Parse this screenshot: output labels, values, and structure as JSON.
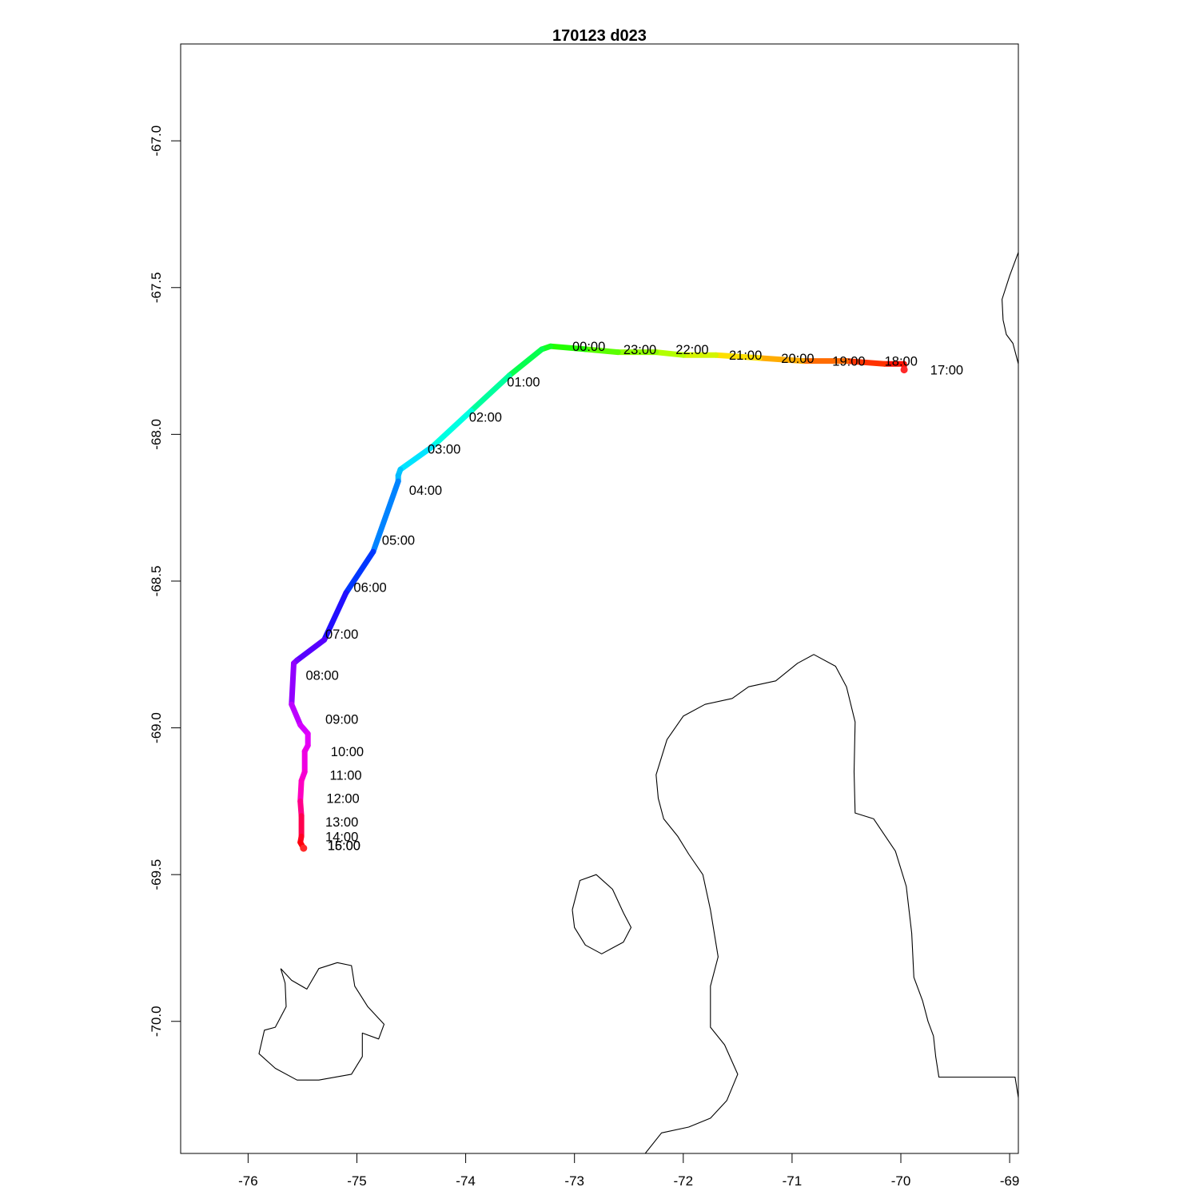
{
  "title": "170123   d023",
  "chart_data": {
    "type": "line",
    "title": "170123   d023",
    "xlabel": "",
    "ylabel": "",
    "xlim": [
      -76.62,
      -68.92
    ],
    "ylim": [
      -70.45,
      -66.67
    ],
    "x_ticks": [
      "-76",
      "-75",
      "-74",
      "-73",
      "-72",
      "-71",
      "-70",
      "-69"
    ],
    "y_ticks": [
      "-67.0",
      "-67.5",
      "-68.0",
      "-68.5",
      "-69.0",
      "-69.5",
      "-70.0"
    ],
    "x_tick_values": [
      -76,
      -75,
      -74,
      -73,
      -72,
      -71,
      -70,
      -69
    ],
    "y_tick_values": [
      -67.0,
      -67.5,
      -68.0,
      -68.5,
      -69.0,
      -69.5,
      -70.0
    ],
    "grid": false,
    "track": {
      "colors": [
        "#ff0000",
        "#ff4000",
        "#ff9a00",
        "#ffe000",
        "#c0ff00",
        "#80ff00",
        "#20ff00",
        "#00ff60",
        "#00ffc0",
        "#00ffff",
        "#00b0ff",
        "#0060ff",
        "#0020ff",
        "#4000ff",
        "#9000ff",
        "#e000ff",
        "#ff00c0",
        "#ff0000"
      ],
      "points": [
        [
          -69.97,
          -67.78
        ],
        [
          -69.97,
          -67.76
        ],
        [
          -70.15,
          -67.76
        ],
        [
          -70.5,
          -67.75
        ],
        [
          -70.9,
          -67.75
        ],
        [
          -71.3,
          -67.74
        ],
        [
          -71.7,
          -67.73
        ],
        [
          -72.0,
          -67.73
        ],
        [
          -72.25,
          -67.72
        ],
        [
          -72.6,
          -67.72
        ],
        [
          -72.9,
          -67.71
        ],
        [
          -73.22,
          -67.7
        ],
        [
          -73.3,
          -67.71
        ],
        [
          -73.6,
          -67.8
        ],
        [
          -73.95,
          -67.92
        ],
        [
          -74.3,
          -68.04
        ],
        [
          -74.6,
          -68.12
        ],
        [
          -74.62,
          -68.14
        ],
        [
          -74.62,
          -68.16
        ],
        [
          -74.85,
          -68.4
        ],
        [
          -75.1,
          -68.54
        ],
        [
          -75.3,
          -68.7
        ],
        [
          -75.55,
          -68.77
        ],
        [
          -75.58,
          -68.78
        ],
        [
          -75.6,
          -68.92
        ],
        [
          -75.52,
          -68.99
        ],
        [
          -75.45,
          -69.02
        ],
        [
          -75.45,
          -69.06
        ],
        [
          -75.48,
          -69.08
        ],
        [
          -75.48,
          -69.15
        ],
        [
          -75.51,
          -69.18
        ],
        [
          -75.52,
          -69.25
        ],
        [
          -75.51,
          -69.3
        ],
        [
          -75.51,
          -69.37
        ],
        [
          -75.52,
          -69.39
        ],
        [
          -75.49,
          -69.41
        ]
      ]
    },
    "time_labels": [
      {
        "text": "00:00",
        "x": -73.02,
        "y": -67.7
      },
      {
        "text": "23:00",
        "x": -72.55,
        "y": -67.71
      },
      {
        "text": "22:00",
        "x": -72.07,
        "y": -67.71
      },
      {
        "text": "21:00",
        "x": -71.58,
        "y": -67.73
      },
      {
        "text": "20:00",
        "x": -71.1,
        "y": -67.74
      },
      {
        "text": "19:00",
        "x": -70.63,
        "y": -67.75
      },
      {
        "text": "18:00",
        "x": -70.15,
        "y": -67.75
      },
      {
        "text": "17:00",
        "x": -69.73,
        "y": -67.78
      },
      {
        "text": "01:00",
        "x": -73.62,
        "y": -67.82
      },
      {
        "text": "02:00",
        "x": -73.97,
        "y": -67.94
      },
      {
        "text": "03:00",
        "x": -74.35,
        "y": -68.05
      },
      {
        "text": "04:00",
        "x": -74.52,
        "y": -68.19
      },
      {
        "text": "05:00",
        "x": -74.77,
        "y": -68.36
      },
      {
        "text": "06:00",
        "x": -75.03,
        "y": -68.52
      },
      {
        "text": "07:00",
        "x": -75.29,
        "y": -68.68
      },
      {
        "text": "08:00",
        "x": -75.47,
        "y": -68.82
      },
      {
        "text": "09:00",
        "x": -75.29,
        "y": -68.97
      },
      {
        "text": "10:00",
        "x": -75.24,
        "y": -69.08
      },
      {
        "text": "11:00",
        "x": -75.25,
        "y": -69.16
      },
      {
        "text": "12:00",
        "x": -75.28,
        "y": -69.24
      },
      {
        "text": "13:00",
        "x": -75.29,
        "y": -69.32
      },
      {
        "text": "14:00",
        "x": -75.29,
        "y": -69.37
      },
      {
        "text": "15:00",
        "x": -75.27,
        "y": -69.4
      },
      {
        "text": "16:00",
        "x": -75.27,
        "y": -69.4
      }
    ],
    "coastlines": [
      [
        [
          -68.92,
          -67.38
        ],
        [
          -69.0,
          -67.46
        ],
        [
          -69.07,
          -67.54
        ],
        [
          -69.06,
          -67.61
        ],
        [
          -69.03,
          -67.66
        ],
        [
          -68.97,
          -67.69
        ],
        [
          -68.92,
          -67.76
        ]
      ],
      [
        [
          -72.35,
          -70.45
        ],
        [
          -72.2,
          -70.38
        ],
        [
          -71.95,
          -70.36
        ],
        [
          -71.75,
          -70.33
        ],
        [
          -71.6,
          -70.27
        ],
        [
          -71.5,
          -70.18
        ],
        [
          -71.62,
          -70.08
        ],
        [
          -71.75,
          -70.02
        ],
        [
          -71.75,
          -69.88
        ],
        [
          -71.68,
          -69.78
        ],
        [
          -71.75,
          -69.62
        ],
        [
          -71.82,
          -69.5
        ],
        [
          -71.95,
          -69.43
        ],
        [
          -72.05,
          -69.37
        ],
        [
          -72.18,
          -69.31
        ],
        [
          -72.23,
          -69.24
        ],
        [
          -72.25,
          -69.16
        ],
        [
          -72.15,
          -69.04
        ],
        [
          -72.0,
          -68.96
        ],
        [
          -71.8,
          -68.92
        ],
        [
          -71.55,
          -68.9
        ],
        [
          -71.4,
          -68.86
        ],
        [
          -71.15,
          -68.84
        ],
        [
          -70.95,
          -68.78
        ],
        [
          -70.8,
          -68.75
        ],
        [
          -70.6,
          -68.79
        ],
        [
          -70.5,
          -68.86
        ],
        [
          -70.42,
          -68.98
        ],
        [
          -70.43,
          -69.15
        ],
        [
          -70.42,
          -69.29
        ],
        [
          -70.25,
          -69.31
        ],
        [
          -70.05,
          -69.42
        ],
        [
          -69.95,
          -69.54
        ],
        [
          -69.9,
          -69.7
        ],
        [
          -69.88,
          -69.85
        ],
        [
          -69.8,
          -69.93
        ],
        [
          -69.75,
          -70.0
        ],
        [
          -69.7,
          -70.05
        ],
        [
          -69.68,
          -70.12
        ],
        [
          -69.65,
          -70.19
        ],
        [
          -68.95,
          -70.19
        ],
        [
          -68.92,
          -70.26
        ]
      ],
      [
        [
          -73.02,
          -69.62
        ],
        [
          -72.95,
          -69.52
        ],
        [
          -72.8,
          -69.5
        ],
        [
          -72.65,
          -69.55
        ],
        [
          -72.55,
          -69.63
        ],
        [
          -72.48,
          -69.68
        ],
        [
          -72.55,
          -69.73
        ],
        [
          -72.75,
          -69.77
        ],
        [
          -72.9,
          -69.74
        ],
        [
          -73.0,
          -69.68
        ],
        [
          -73.02,
          -69.62
        ]
      ],
      [
        [
          -75.7,
          -69.82
        ],
        [
          -75.66,
          -69.87
        ],
        [
          -75.65,
          -69.95
        ],
        [
          -75.75,
          -70.02
        ],
        [
          -75.85,
          -70.03
        ],
        [
          -75.9,
          -70.11
        ],
        [
          -75.75,
          -70.16
        ],
        [
          -75.55,
          -70.2
        ],
        [
          -75.35,
          -70.2
        ],
        [
          -75.05,
          -70.18
        ],
        [
          -74.95,
          -70.12
        ],
        [
          -74.95,
          -70.04
        ],
        [
          -74.8,
          -70.06
        ],
        [
          -74.75,
          -70.01
        ],
        [
          -74.9,
          -69.95
        ],
        [
          -75.02,
          -69.88
        ],
        [
          -75.05,
          -69.81
        ],
        [
          -75.18,
          -69.8
        ],
        [
          -75.35,
          -69.82
        ],
        [
          -75.46,
          -69.89
        ],
        [
          -75.6,
          -69.86
        ],
        [
          -75.7,
          -69.82
        ]
      ]
    ]
  }
}
